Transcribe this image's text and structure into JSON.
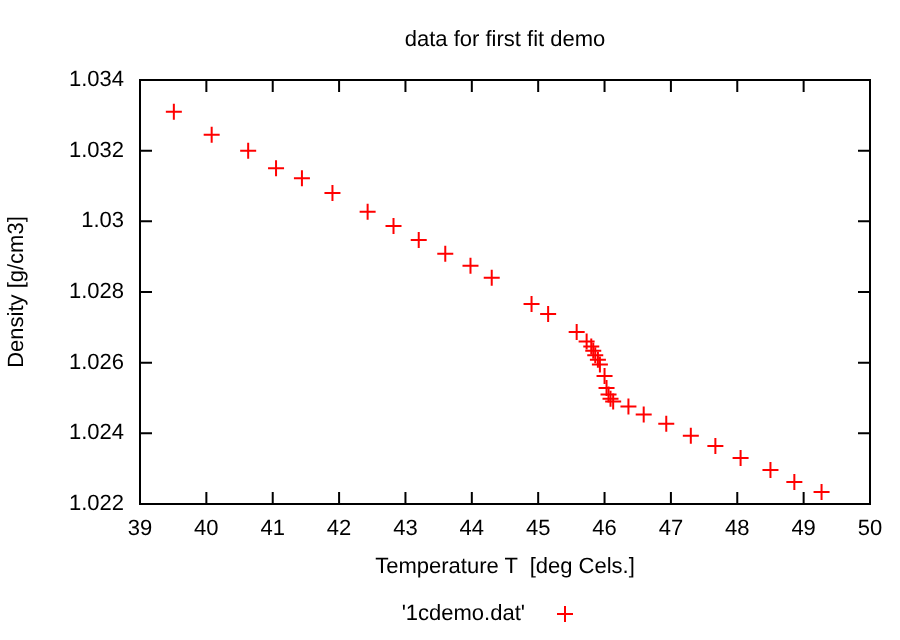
{
  "chart_data": {
    "type": "scatter",
    "title": "data for first fit demo",
    "xlabel": "Temperature T  [deg Cels.]",
    "ylabel": "Density [g/cm3]",
    "xlim": [
      39,
      50
    ],
    "xticks": [
      39,
      40,
      41,
      42,
      43,
      44,
      45,
      46,
      47,
      48,
      49,
      50
    ],
    "ylim": [
      1.022,
      1.034
    ],
    "yticks": [
      1.022,
      1.024,
      1.026,
      1.028,
      1.03,
      1.032,
      1.034
    ],
    "grid": false,
    "legend": "bottom",
    "marker": "cross",
    "series": [
      {
        "name": "'1cdemo.dat'",
        "color": "#ff0000",
        "x": [
          39.51,
          40.08,
          40.63,
          41.05,
          41.44,
          41.9,
          42.43,
          42.82,
          43.2,
          43.6,
          43.98,
          44.3,
          44.9,
          45.15,
          45.58,
          45.73,
          45.8,
          45.83,
          45.86,
          45.9,
          45.93,
          46.0,
          46.03,
          46.06,
          46.09,
          46.13,
          46.36,
          46.59,
          46.93,
          47.3,
          47.67,
          48.05,
          48.5,
          48.86,
          49.27
        ],
        "values": [
          1.0331,
          1.03245,
          1.032,
          1.0315,
          1.03122,
          1.0308,
          1.03027,
          1.02987,
          1.02947,
          1.02908,
          1.02874,
          1.0284,
          1.02766,
          1.02738,
          1.02687,
          1.0266,
          1.02646,
          1.02634,
          1.02621,
          1.02608,
          1.02595,
          1.02562,
          1.02528,
          1.0251,
          1.02498,
          1.0249,
          1.02476,
          1.02453,
          1.02427,
          1.02393,
          1.02364,
          1.0233,
          1.02296,
          1.02262,
          1.02234
        ]
      }
    ]
  }
}
